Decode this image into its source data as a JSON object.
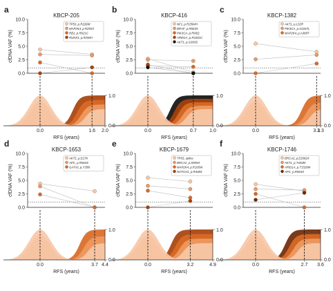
{
  "chart_data": [
    {
      "panel_letter": "a",
      "title": "KBCP-205",
      "type": "line",
      "ylabel": "cfDNA VAF (%)",
      "xlabel": "RFS (years)",
      "yticks": [
        "0.0",
        "2.5",
        "5.0",
        "7.5",
        "10.0"
      ],
      "ylim": [
        0,
        10
      ],
      "xticks": [
        "0.0",
        "1.6",
        "2.0"
      ],
      "x_end": 2.0,
      "rfs": 1.6,
      "right_ticks": [
        "0.0",
        "1.0"
      ],
      "dotted_threshold": 1.0,
      "series": [
        {
          "name": "TP53_p.R228W",
          "color": "#f7c8a8",
          "values": [
            {
              "x": 0.0,
              "y": 4.4
            },
            {
              "x": 1.6,
              "y": 3.5
            }
          ]
        },
        {
          "name": "MAP2K4_p.R292X",
          "color": "#ee9a62",
          "values": [
            {
              "x": 0.0,
              "y": 3.5
            },
            {
              "x": 1.6,
              "y": 3.3
            }
          ]
        },
        {
          "name": "RB1_p.R621C",
          "color": "#d96a26",
          "values": [
            {
              "x": 0.0,
              "y": 2.0
            },
            {
              "x": 1.6,
              "y": 0.0
            }
          ]
        },
        {
          "name": "RUNX1_p.R256H",
          "color": "#a8420c",
          "values": [
            {
              "x": 0.0,
              "y": 0.0
            },
            {
              "x": 1.6,
              "y": 1.1
            }
          ]
        }
      ]
    },
    {
      "panel_letter": "b",
      "title": "KBCP-416",
      "type": "line",
      "ylabel": "cfDNA VAF (%)",
      "xlabel": "RFS (years)",
      "yticks": [
        "0.0",
        "2.5",
        "5.0",
        "7.5",
        "10.0"
      ],
      "ylim": [
        0,
        10
      ],
      "xticks": [
        "0.0",
        "0.7",
        "1.0"
      ],
      "x_end": 1.0,
      "rfs": 0.7,
      "right_ticks": [
        "0.0",
        "1.0"
      ],
      "dotted_threshold": 1.0,
      "series": [
        {
          "name": "NF1_p.R2584H",
          "color": "#f7c8a8",
          "values": [
            {
              "x": 0.0,
              "y": 2.7
            },
            {
              "x": 0.7,
              "y": 0.2
            }
          ]
        },
        {
          "name": "BRAF_p.R603X",
          "color": "#ee9a62",
          "values": [
            {
              "x": 0.0,
              "y": 2.5
            },
            {
              "x": 0.7,
              "y": 2.3
            }
          ]
        },
        {
          "name": "PIK3CA_p.R93Q",
          "color": "#d96a26",
          "values": [
            {
              "x": 0.0,
              "y": 1.4
            },
            {
              "x": 0.7,
              "y": 1.2
            }
          ]
        },
        {
          "name": "ARID1A_p.R1501C",
          "color": "#a8420c",
          "values": [
            {
              "x": 0.0,
              "y": 1.6
            },
            {
              "x": 0.7,
              "y": 0.0
            }
          ]
        },
        {
          "name": "AKT1_p.G303S",
          "color": "#111111",
          "values": [
            {
              "x": 0.0,
              "y": 1.1
            },
            {
              "x": 0.7,
              "y": 0.0
            }
          ]
        }
      ]
    },
    {
      "panel_letter": "c",
      "title": "KBCP-1382",
      "type": "line",
      "ylabel": "cfDNA VAF (%)",
      "xlabel": "RFS (years)",
      "yticks": [
        "0.0",
        "2.5",
        "5.0",
        "7.5",
        "10.0"
      ],
      "ylim": [
        0,
        10
      ],
      "xticks": [
        "0.0",
        "3.1",
        "3.3"
      ],
      "x_end": 3.3,
      "rfs": 3.1,
      "right_ticks": [
        "0.0",
        "1.0"
      ],
      "dotted_threshold": 1.0,
      "series": [
        {
          "name": "AKT1_p.L52R",
          "color": "#f7c8a8",
          "values": [
            {
              "x": 0.0,
              "y": 5.5
            },
            {
              "x": 3.1,
              "y": 4.0
            }
          ]
        },
        {
          "name": "PIK3CA_p.H1047L",
          "color": "#ee9a62",
          "values": [
            {
              "x": 0.0,
              "y": 2.6
            },
            {
              "x": 3.1,
              "y": 3.4
            }
          ]
        },
        {
          "name": "MAP2K4_p.A389T",
          "color": "#d96a26",
          "values": [
            {
              "x": 0.0,
              "y": 0.0
            },
            {
              "x": 3.1,
              "y": 1.8
            }
          ]
        }
      ]
    },
    {
      "panel_letter": "d",
      "title": "KBCP-1653",
      "type": "line",
      "ylabel": "cfDNA VAF (%)",
      "xlabel": "RFS (years)",
      "yticks": [
        "0.0",
        "2.5",
        "5.0",
        "7.5",
        "10.0"
      ],
      "ylim": [
        0,
        10
      ],
      "xticks": [
        "0.0",
        "3.7",
        "4.4"
      ],
      "x_end": 4.4,
      "rfs": 3.7,
      "right_ticks": [
        "0.0",
        "1.0"
      ],
      "dotted_threshold": 1.0,
      "series": [
        {
          "name": "AKT1_p.E17K",
          "color": "#f7c8a8",
          "values": [
            {
              "x": 0.0,
              "y": 4.4
            },
            {
              "x": 3.7,
              "y": 3.0
            }
          ]
        },
        {
          "name": "APC_p.R564X",
          "color": "#ee9a62",
          "values": [
            {
              "x": 0.0,
              "y": 3.9
            },
            {
              "x": 3.7,
              "y": 0.0
            }
          ]
        },
        {
          "name": "GATA3_p.Y35fs",
          "color": "#d96a26",
          "values": [
            {
              "x": 0.0,
              "y": 2.4
            },
            {
              "x": 3.7,
              "y": 0.0
            }
          ]
        }
      ]
    },
    {
      "panel_letter": "e",
      "title": "KBCP-1679",
      "type": "line",
      "ylabel": "cfDNA VAF (%)",
      "xlabel": "RFS (years)",
      "yticks": [
        "0.0",
        "2.5",
        "5.0",
        "7.5",
        "10.0"
      ],
      "ylim": [
        0,
        10
      ],
      "xticks": [
        "0.0",
        "3.2",
        "4.9"
      ],
      "x_end": 4.9,
      "rfs": 3.2,
      "right_ticks": [
        "0.0",
        "1.0"
      ],
      "dotted_threshold": 1.0,
      "series": [
        {
          "name": "TP53_splice",
          "color": "#f7c8a8",
          "values": [
            {
              "x": 0.0,
              "y": 5.5
            },
            {
              "x": 3.2,
              "y": 4.8
            }
          ]
        },
        {
          "name": "BRCA2_p.S955X",
          "color": "#ee9a62",
          "values": [
            {
              "x": 0.0,
              "y": 4.0
            },
            {
              "x": 3.2,
              "y": 3.4
            }
          ]
        },
        {
          "name": "MAP2K4_p.R165W",
          "color": "#d96a26",
          "values": [
            {
              "x": 0.0,
              "y": 3.1
            },
            {
              "x": 3.2,
              "y": 1.8
            }
          ]
        },
        {
          "name": "NOTCH1_p.R448X",
          "color": "#a8420c",
          "values": [
            {
              "x": 0.0,
              "y": 0.0
            },
            {
              "x": 3.2,
              "y": 1.2
            }
          ]
        }
      ]
    },
    {
      "panel_letter": "f",
      "title": "KBCP-1746",
      "type": "line",
      "ylabel": "cfDNA VAF (%)",
      "xlabel": "RFS (years)",
      "yticks": [
        "0.0",
        "2.5",
        "5.0",
        "7.5",
        "10.0"
      ],
      "ylim": [
        0,
        10
      ],
      "xticks": [
        "0.0",
        "2.7",
        "3.6"
      ],
      "x_end": 3.6,
      "rfs": 2.7,
      "right_ticks": [
        "0.0",
        "1.0"
      ],
      "dotted_threshold": 1.0,
      "series": [
        {
          "name": "BRCA2_p.E2082X",
          "color": "#f7c8a8",
          "values": [
            {
              "x": 0.0,
              "y": 4.3
            },
            {
              "x": 2.7,
              "y": 3.0
            }
          ]
        },
        {
          "name": "AKT1_p.T443M",
          "color": "#ee9a62",
          "values": [
            {
              "x": 0.0,
              "y": 3.4
            },
            {
              "x": 2.7,
              "y": 3.2
            }
          ]
        },
        {
          "name": "ARID1A_p.T1526M",
          "color": "#d96a26",
          "values": [
            {
              "x": 0.0,
              "y": 2.5
            },
            {
              "x": 2.7,
              "y": 0.0
            }
          ]
        },
        {
          "name": "APC_p.R564X",
          "color": "#6e2a08",
          "values": [
            {
              "x": 0.0,
              "y": 1.4
            },
            {
              "x": 2.7,
              "y": 2.7
            }
          ]
        }
      ]
    }
  ]
}
